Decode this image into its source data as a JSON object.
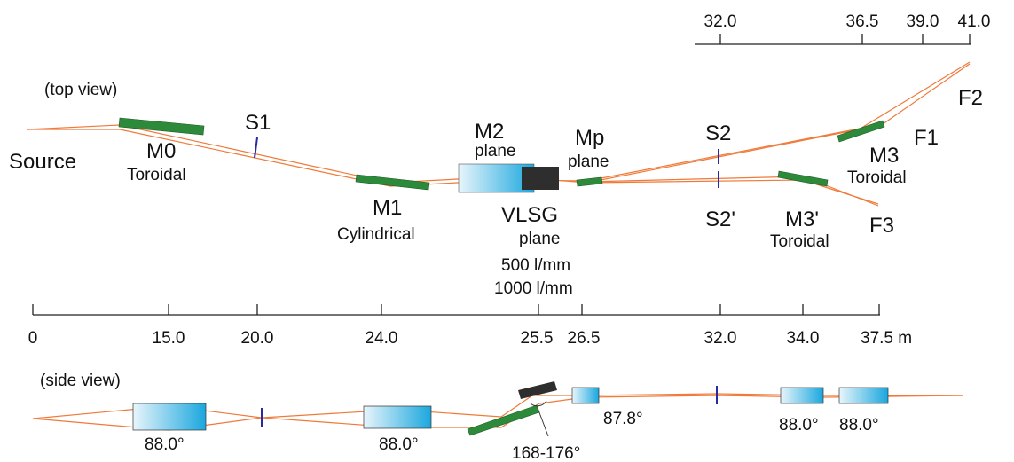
{
  "top_scale": {
    "ticks": [
      "32.0",
      "36.5",
      "39.0",
      "41.0"
    ]
  },
  "top_view": {
    "title": "(top view)",
    "source": "Source",
    "elements": [
      {
        "name": "M0",
        "type": "Toroidal"
      },
      {
        "name": "S1"
      },
      {
        "name": "M1",
        "type": "Cylindrical"
      },
      {
        "name": "M2",
        "type": "plane"
      },
      {
        "name": "Mp",
        "type": "plane"
      },
      {
        "name": "VLSG",
        "type": "plane",
        "lines": [
          "500 l/mm",
          "1000 l/mm"
        ]
      },
      {
        "name": "S2"
      },
      {
        "name": "S2'"
      },
      {
        "name": "M3",
        "type": "Toroidal"
      },
      {
        "name": "M3'",
        "type": "Toroidal"
      }
    ],
    "foci": [
      "F1",
      "F2",
      "F3"
    ]
  },
  "bottom_scale": {
    "ticks": [
      "0",
      "15.0",
      "20.0",
      "24.0",
      "25.5",
      "26.5",
      "32.0",
      "34.0",
      "37.5 m"
    ]
  },
  "side_view": {
    "title": "(side view)",
    "angles": [
      "88.0°",
      "88.0°",
      "168-176°",
      "87.8°",
      "88.0°",
      "88.0°"
    ]
  }
}
